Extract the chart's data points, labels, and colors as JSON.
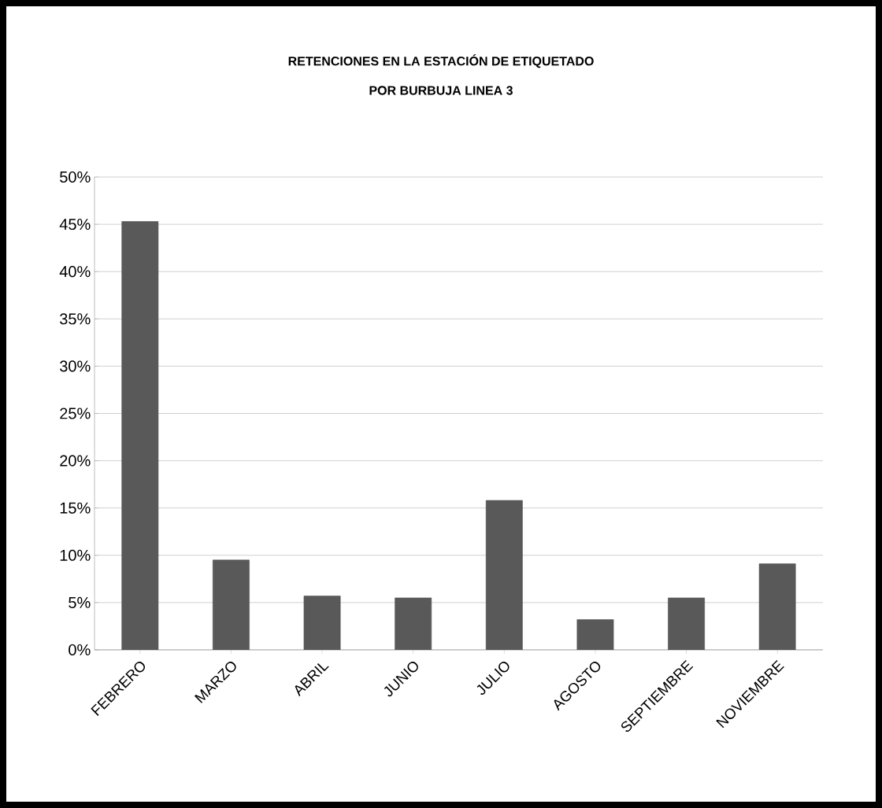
{
  "chart_data": {
    "type": "bar",
    "title": "RETENCIONES EN LA ESTACIÓN DE ETIQUETADO",
    "subtitle": "POR BURBUJA LINEA 3",
    "categories": [
      "FEBRERO",
      "MARZO",
      "ABRIL",
      "JUNIO",
      "JULIO",
      "AGOSTO",
      "SEPTIEMBRE",
      "NOVIEMBRE"
    ],
    "values": [
      45.3,
      9.5,
      5.7,
      5.5,
      15.8,
      3.2,
      5.5,
      9.1
    ],
    "color": "#595959",
    "ylim": [
      0,
      50
    ],
    "yticks": [
      {
        "value": 0,
        "label": "0%"
      },
      {
        "value": 5,
        "label": "5%"
      },
      {
        "value": 10,
        "label": "10%"
      },
      {
        "value": 15,
        "label": "15%"
      },
      {
        "value": 20,
        "label": "20%"
      },
      {
        "value": 25,
        "label": "25%"
      },
      {
        "value": 30,
        "label": "30%"
      },
      {
        "value": 35,
        "label": "35%"
      },
      {
        "value": 40,
        "label": "40%"
      },
      {
        "value": 45,
        "label": "45%"
      },
      {
        "value": 50,
        "label": "50%"
      }
    ],
    "grid": "y"
  }
}
